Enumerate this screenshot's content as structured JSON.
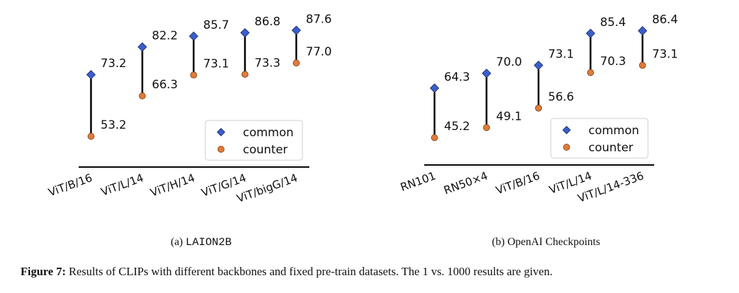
{
  "colors": {
    "common": "#3a5fcd",
    "counter": "#e07b39",
    "stem": "#000000"
  },
  "chart_data": [
    {
      "type": "dumbbell",
      "subcaption_prefix": "(a)",
      "subcaption_text": "LAION2B",
      "categories": [
        "ViT/B/16",
        "ViT/L/14",
        "ViT/H/14",
        "ViT/G/14",
        "ViT/bigG/14"
      ],
      "series": [
        {
          "name": "common",
          "values": [
            73.2,
            82.2,
            85.7,
            86.8,
            87.6
          ]
        },
        {
          "name": "counter",
          "values": [
            53.2,
            66.3,
            73.1,
            73.3,
            77.0
          ]
        }
      ],
      "legend": [
        "common",
        "counter"
      ],
      "legend_position": "lower-right",
      "ylim": [
        45,
        93
      ]
    },
    {
      "type": "dumbbell",
      "subcaption_prefix": "(b)",
      "subcaption_text": "OpenAI Checkpoints",
      "categories": [
        "RN101",
        "RN50×4",
        "ViT/B/16",
        "ViT/L/14",
        "ViT/L/14-336"
      ],
      "series": [
        {
          "name": "common",
          "values": [
            64.3,
            70.0,
            73.1,
            85.4,
            86.4
          ]
        },
        {
          "name": "counter",
          "values": [
            45.2,
            49.1,
            56.6,
            70.3,
            73.1
          ]
        }
      ],
      "legend": [
        "common",
        "counter"
      ],
      "legend_position": "lower-right",
      "ylim": [
        36,
        93
      ]
    }
  ],
  "caption": {
    "label": "Figure 7:",
    "text": " Results of CLIPs with different backbones and fixed pre-train datasets. The 1 vs. 1000 results are given."
  }
}
